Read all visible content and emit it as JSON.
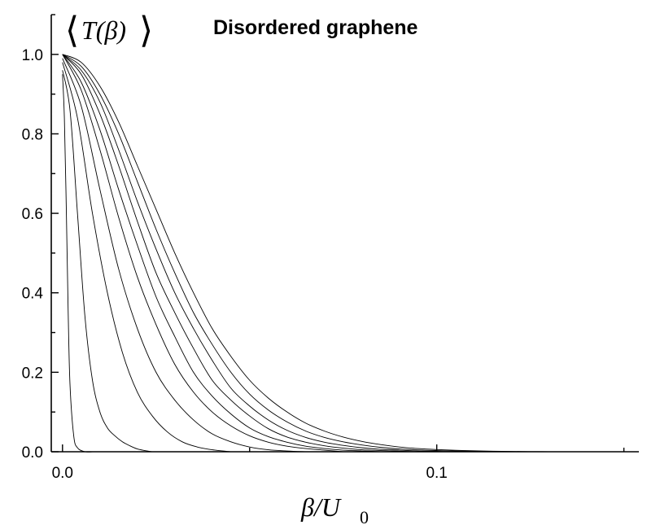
{
  "chart_data": {
    "type": "line",
    "title": "Disordered graphene",
    "ylabel": "T(β)",
    "xlabel": "β/U",
    "xlabel_subscript": "0",
    "xlim": [
      -0.003,
      0.154
    ],
    "ylim": [
      0,
      1.1
    ],
    "x_ticks": [
      {
        "value": 0.0,
        "label": "0.0"
      },
      {
        "value": 0.1,
        "label": "0.1"
      }
    ],
    "y_ticks": [
      {
        "value": 0.0,
        "label": "0.0"
      },
      {
        "value": 0.2,
        "label": "0.2"
      },
      {
        "value": 0.4,
        "label": "0.4"
      },
      {
        "value": 0.6,
        "label": "0.6"
      },
      {
        "value": 0.8,
        "label": "0.8"
      },
      {
        "value": 1.0,
        "label": "1.0"
      }
    ],
    "grid": false,
    "series": [
      {
        "x": [
          0,
          0.0005,
          0.001,
          0.0015,
          0.002,
          0.003,
          0.004,
          0.006,
          0.008
        ],
        "values": [
          0.95,
          0.84,
          0.62,
          0.36,
          0.17,
          0.04,
          0.01,
          0.0,
          0.0
        ]
      },
      {
        "x": [
          0,
          0.002,
          0.004,
          0.006,
          0.008,
          0.01,
          0.012,
          0.014,
          0.016,
          0.018,
          0.02,
          0.022,
          0.024
        ],
        "values": [
          0.96,
          0.86,
          0.6,
          0.34,
          0.18,
          0.1,
          0.06,
          0.04,
          0.025,
          0.015,
          0.007,
          0.003,
          0.0
        ]
      },
      {
        "x": [
          0,
          0.004,
          0.008,
          0.012,
          0.016,
          0.02,
          0.024,
          0.028,
          0.032,
          0.036,
          0.04,
          0.045
        ],
        "values": [
          0.98,
          0.84,
          0.6,
          0.4,
          0.25,
          0.15,
          0.09,
          0.05,
          0.025,
          0.012,
          0.005,
          0.0
        ]
      },
      {
        "x": [
          0,
          0.005,
          0.01,
          0.015,
          0.02,
          0.025,
          0.03,
          0.035,
          0.04,
          0.045,
          0.05,
          0.055,
          0.06,
          0.065
        ],
        "values": [
          0.99,
          0.87,
          0.66,
          0.46,
          0.31,
          0.2,
          0.13,
          0.08,
          0.045,
          0.025,
          0.012,
          0.005,
          0.002,
          0.0
        ]
      },
      {
        "x": [
          0,
          0.005,
          0.01,
          0.015,
          0.02,
          0.025,
          0.03,
          0.035,
          0.04,
          0.045,
          0.05,
          0.055,
          0.06,
          0.065,
          0.07,
          0.075
        ],
        "values": [
          1.0,
          0.91,
          0.76,
          0.59,
          0.44,
          0.32,
          0.22,
          0.15,
          0.1,
          0.065,
          0.04,
          0.024,
          0.014,
          0.008,
          0.004,
          0.0
        ]
      },
      {
        "x": [
          0,
          0.005,
          0.01,
          0.015,
          0.02,
          0.025,
          0.03,
          0.035,
          0.04,
          0.045,
          0.05,
          0.055,
          0.06,
          0.065,
          0.07,
          0.075,
          0.08,
          0.085
        ],
        "values": [
          1.0,
          0.93,
          0.81,
          0.66,
          0.52,
          0.39,
          0.29,
          0.2,
          0.14,
          0.095,
          0.06,
          0.038,
          0.024,
          0.014,
          0.008,
          0.004,
          0.002,
          0.0
        ]
      },
      {
        "x": [
          0,
          0.005,
          0.01,
          0.015,
          0.02,
          0.025,
          0.03,
          0.035,
          0.04,
          0.045,
          0.05,
          0.055,
          0.06,
          0.065,
          0.07,
          0.075,
          0.08,
          0.085,
          0.09,
          0.095
        ],
        "values": [
          1.0,
          0.95,
          0.85,
          0.72,
          0.58,
          0.45,
          0.35,
          0.26,
          0.18,
          0.13,
          0.09,
          0.058,
          0.037,
          0.024,
          0.015,
          0.009,
          0.005,
          0.003,
          0.0015,
          0.0
        ]
      },
      {
        "x": [
          0,
          0.005,
          0.01,
          0.015,
          0.02,
          0.025,
          0.03,
          0.035,
          0.04,
          0.045,
          0.05,
          0.055,
          0.06,
          0.065,
          0.07,
          0.075,
          0.08,
          0.085,
          0.09,
          0.095,
          0.1,
          0.105
        ],
        "values": [
          1.0,
          0.96,
          0.88,
          0.76,
          0.63,
          0.51,
          0.4,
          0.31,
          0.23,
          0.16,
          0.115,
          0.08,
          0.054,
          0.036,
          0.024,
          0.016,
          0.01,
          0.006,
          0.004,
          0.002,
          0.001,
          0.0
        ]
      },
      {
        "x": [
          0,
          0.005,
          0.01,
          0.015,
          0.02,
          0.025,
          0.03,
          0.035,
          0.04,
          0.045,
          0.05,
          0.055,
          0.06,
          0.065,
          0.07,
          0.075,
          0.08,
          0.085,
          0.09,
          0.095,
          0.1,
          0.105,
          0.11,
          0.115,
          0.12
        ],
        "values": [
          1.0,
          0.97,
          0.9,
          0.8,
          0.68,
          0.56,
          0.45,
          0.35,
          0.27,
          0.2,
          0.145,
          0.105,
          0.075,
          0.052,
          0.036,
          0.025,
          0.017,
          0.011,
          0.007,
          0.0045,
          0.003,
          0.002,
          0.0012,
          0.0006,
          0.0
        ]
      },
      {
        "x": [
          0,
          0.005,
          0.01,
          0.015,
          0.02,
          0.025,
          0.03,
          0.035,
          0.04,
          0.045,
          0.05,
          0.055,
          0.06,
          0.065,
          0.07,
          0.075,
          0.08,
          0.085,
          0.09,
          0.095,
          0.1,
          0.105,
          0.11,
          0.115,
          0.12,
          0.125,
          0.13
        ],
        "values": [
          1.0,
          0.98,
          0.92,
          0.83,
          0.72,
          0.61,
          0.5,
          0.4,
          0.31,
          0.24,
          0.18,
          0.135,
          0.1,
          0.072,
          0.052,
          0.037,
          0.026,
          0.018,
          0.012,
          0.008,
          0.0055,
          0.0037,
          0.0024,
          0.0015,
          0.0009,
          0.0004,
          0.0
        ]
      }
    ]
  }
}
